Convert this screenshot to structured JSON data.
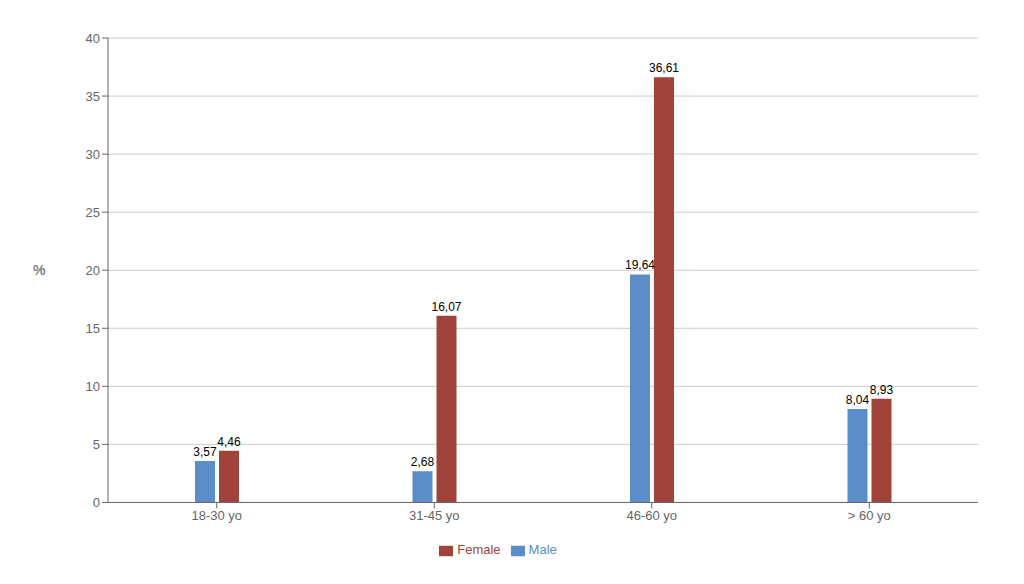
{
  "chart_data": {
    "type": "bar",
    "categories": [
      "18-30 yo",
      "31-45 yo",
      "46-60 yo",
      "> 60 yo"
    ],
    "series": [
      {
        "name": "Male",
        "color": "#5B8DC8",
        "values": [
          3.57,
          2.68,
          19.64,
          8.04
        ],
        "value_labels": [
          "3,57",
          "2,68",
          "19,64",
          "8,04"
        ]
      },
      {
        "name": "Female",
        "color": "#A0433A",
        "values": [
          4.46,
          16.07,
          36.61,
          8.93
        ],
        "value_labels": [
          "4,46",
          "16,07",
          "36,61",
          "8,93"
        ]
      }
    ],
    "ylabel": "%",
    "ylim": [
      0,
      40
    ],
    "yticks": [
      0,
      5,
      10,
      15,
      20,
      25,
      30,
      35,
      40
    ],
    "grid": true,
    "legend": "bottom",
    "data_labels": true
  }
}
